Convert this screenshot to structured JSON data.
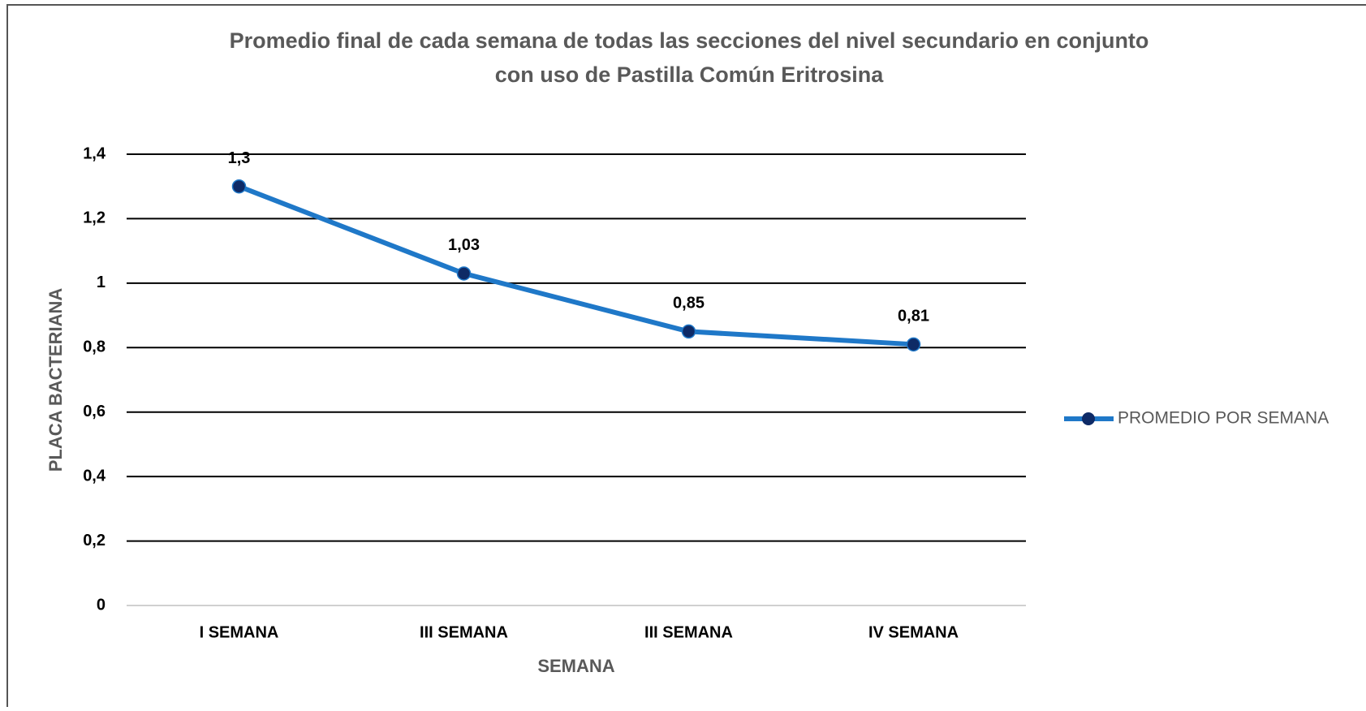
{
  "chart_data": {
    "type": "line",
    "title": [
      "Promedio final de cada semana de todas las secciones del nivel secundario en conjunto",
      "con uso de Pastilla Común Eritrosina"
    ],
    "x_label": "SEMANA",
    "y_label": "PLACA BACTERIANA",
    "categories": [
      "I SEMANA",
      "III SEMANA",
      "III SEMANA",
      "IV SEMANA"
    ],
    "series": [
      {
        "name": "PROMEDIO POR SEMANA",
        "color": "#1f78c8",
        "marker_color": "#0e2a66",
        "values": [
          1.3,
          1.03,
          0.85,
          0.81
        ],
        "value_labels": [
          "1,3",
          "1,03",
          "0,85",
          "0,81"
        ]
      }
    ],
    "ylim": [
      0,
      1.4
    ],
    "yticks": [
      0,
      {
        "value": 0.2,
        "label": "0,2"
      },
      {
        "value": 0.4,
        "label": "0,4"
      },
      {
        "value": 0.6,
        "label": "0,6"
      },
      {
        "value": 0.8,
        "label": "0,8"
      },
      1,
      {
        "value": 1.2,
        "label": "1,2"
      },
      {
        "value": 1.4,
        "label": "1,4"
      }
    ],
    "grid": true,
    "legend": "right"
  }
}
